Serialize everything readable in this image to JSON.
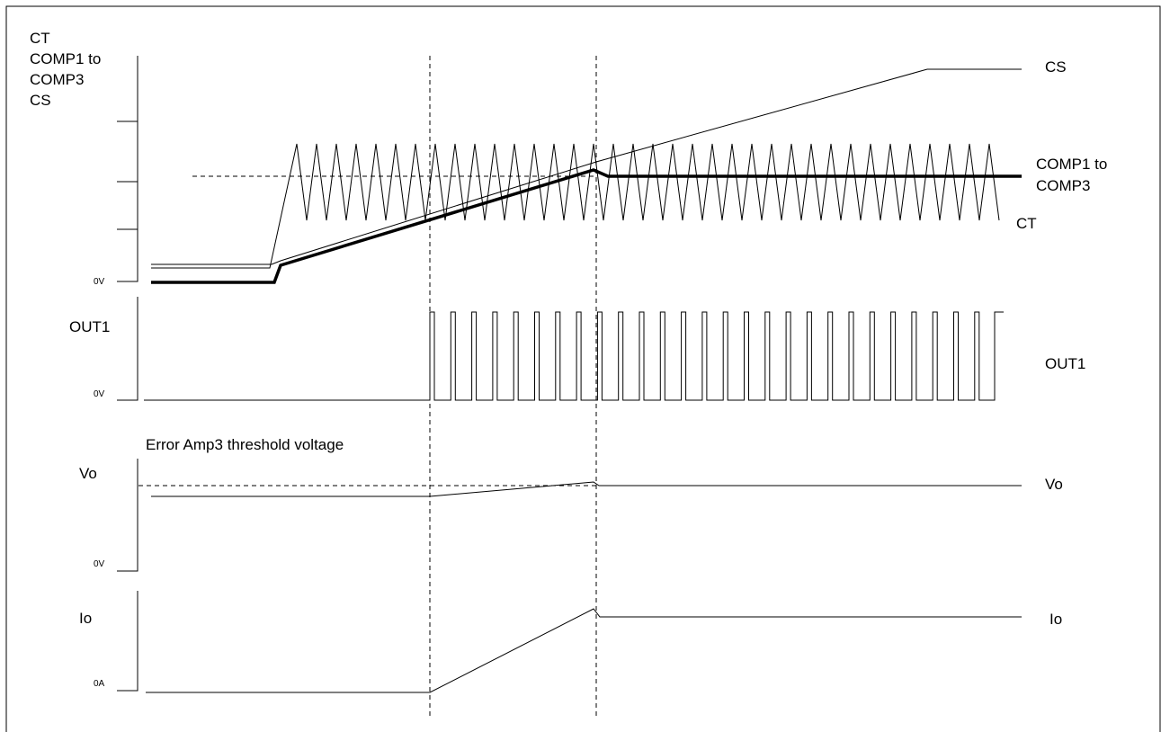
{
  "panels": {
    "top": {
      "y_label_lines": [
        "CT",
        "COMP1 to",
        "COMP3",
        "CS"
      ],
      "zero_label": "0V",
      "trace_labels": {
        "cs": "CS",
        "comp_line1": "COMP1 to",
        "comp_line2": "COMP3",
        "ct": "CT"
      }
    },
    "out1": {
      "y_label": "OUT1",
      "zero_label": "0V",
      "trace_label": "OUT1"
    },
    "vo": {
      "y_label": "Vo",
      "zero_label": "0V",
      "threshold_label": "Error Amp3 threshold voltage",
      "trace_label": "Vo"
    },
    "io": {
      "y_label": "Io",
      "zero_label": "0A",
      "trace_label": "Io"
    }
  }
}
